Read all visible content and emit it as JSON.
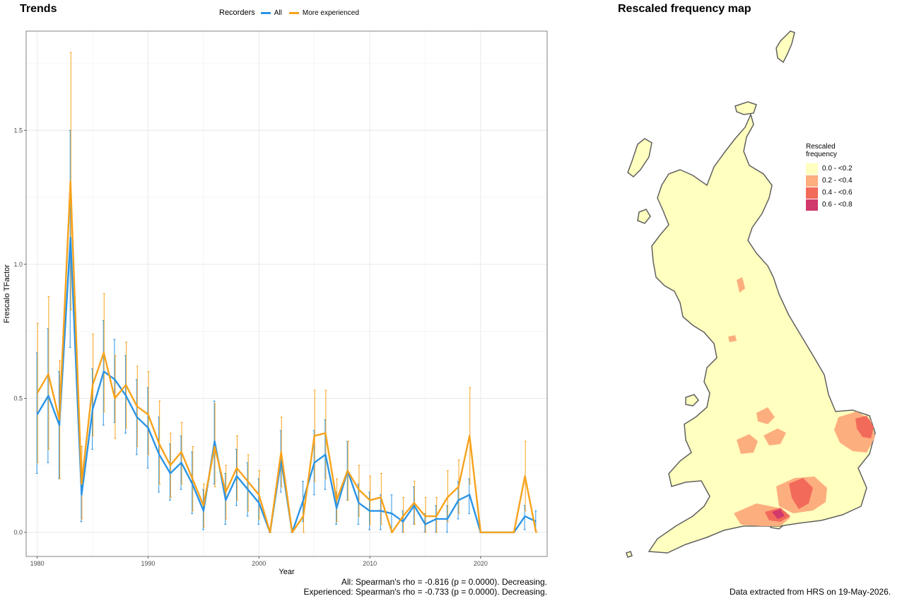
{
  "trends": {
    "title": "Trends",
    "legend": {
      "title": "Recorders",
      "items": [
        {
          "label": "All",
          "color": "#2b94e5"
        },
        {
          "label": "More experienced",
          "color": "#f7a21b"
        }
      ]
    },
    "stats": {
      "all": "All: Spearman's rho = -0.816 (p = 0.0000). Decreasing.",
      "experienced": "Experienced: Spearman's rho = -0.733 (p = 0.0000). Decreasing."
    }
  },
  "chart_data": {
    "type": "line",
    "xlabel": "Year",
    "ylabel": "Frescalo TFactor",
    "xlim": [
      1979,
      2026
    ],
    "ylim": [
      -0.09,
      1.87
    ],
    "xticks": [
      1980,
      1990,
      2000,
      2010,
      2020
    ],
    "yticks": [
      0.0,
      0.5,
      1.0,
      1.5
    ],
    "ytick_labels": [
      "0.0",
      "0.5",
      "1.0",
      "1.5"
    ],
    "grid": true,
    "error_bars": true,
    "legend_position": "top",
    "series": [
      {
        "name": "All",
        "color": "#2b94e5",
        "x": [
          1980,
          1981,
          1982,
          1983,
          1984,
          1985,
          1986,
          1987,
          1988,
          1989,
          1990,
          1991,
          1992,
          1993,
          1994,
          1995,
          1996,
          1997,
          1998,
          1999,
          2000,
          2001,
          2002,
          2003,
          2004,
          2005,
          2006,
          2007,
          2008,
          2009,
          2010,
          2011,
          2012,
          2013,
          2014,
          2015,
          2016,
          2017,
          2018,
          2019,
          2020,
          2021,
          2022,
          2023,
          2024,
          2025
        ],
        "y": [
          0.44,
          0.51,
          0.4,
          1.1,
          0.14,
          0.46,
          0.6,
          0.57,
          0.51,
          0.43,
          0.39,
          0.29,
          0.22,
          0.26,
          0.18,
          0.08,
          0.34,
          0.12,
          0.21,
          0.16,
          0.11,
          0.0,
          0.27,
          0.0,
          0.12,
          0.26,
          0.29,
          0.09,
          0.23,
          0.11,
          0.08,
          0.08,
          0.07,
          0.04,
          0.1,
          0.03,
          0.05,
          0.05,
          0.12,
          0.14,
          0.0,
          0.0,
          0.0,
          0.0,
          0.06,
          0.04
        ],
        "lower": [
          0.22,
          0.26,
          0.2,
          0.69,
          0.04,
          0.31,
          0.4,
          0.41,
          0.37,
          0.29,
          0.24,
          0.15,
          0.12,
          0.16,
          0.07,
          0.01,
          0.18,
          0.03,
          0.1,
          0.06,
          0.03,
          0.0,
          0.15,
          0.0,
          0.04,
          0.14,
          0.16,
          0.03,
          0.12,
          0.03,
          0.01,
          0.01,
          0.0,
          0.0,
          0.03,
          0.0,
          0.0,
          0.0,
          0.05,
          0.07,
          0.0,
          0.0,
          0.0,
          0.0,
          0.01,
          0.01
        ],
        "upper": [
          0.67,
          0.76,
          0.6,
          1.5,
          0.24,
          0.61,
          0.79,
          0.72,
          0.66,
          0.57,
          0.54,
          0.43,
          0.33,
          0.36,
          0.3,
          0.16,
          0.49,
          0.22,
          0.31,
          0.26,
          0.2,
          0.0,
          0.38,
          0.0,
          0.19,
          0.38,
          0.42,
          0.15,
          0.34,
          0.18,
          0.15,
          0.14,
          0.14,
          0.08,
          0.17,
          0.07,
          0.1,
          0.1,
          0.19,
          0.2,
          0.0,
          0.0,
          0.0,
          0.0,
          0.1,
          0.08
        ]
      },
      {
        "name": "More experienced",
        "color": "#f7a21b",
        "x": [
          1980,
          1981,
          1982,
          1983,
          1984,
          1985,
          1986,
          1987,
          1988,
          1989,
          1990,
          1991,
          1992,
          1993,
          1994,
          1995,
          1996,
          1997,
          1998,
          1999,
          2000,
          2001,
          2002,
          2003,
          2004,
          2005,
          2006,
          2007,
          2008,
          2009,
          2010,
          2011,
          2012,
          2013,
          2014,
          2015,
          2016,
          2017,
          2018,
          2019,
          2020,
          2021,
          2022,
          2023,
          2024,
          2025
        ],
        "y": [
          0.52,
          0.59,
          0.42,
          1.31,
          0.18,
          0.55,
          0.67,
          0.5,
          0.55,
          0.47,
          0.44,
          0.33,
          0.25,
          0.3,
          0.2,
          0.1,
          0.32,
          0.15,
          0.24,
          0.19,
          0.14,
          0.0,
          0.3,
          0.0,
          0.06,
          0.36,
          0.37,
          0.12,
          0.23,
          0.16,
          0.12,
          0.13,
          0.0,
          0.06,
          0.11,
          0.06,
          0.06,
          0.13,
          0.17,
          0.36,
          0.0,
          0.0,
          0.0,
          0.0,
          0.21,
          0.0
        ],
        "lower": [
          0.26,
          0.31,
          0.2,
          0.83,
          0.05,
          0.36,
          0.45,
          0.35,
          0.39,
          0.32,
          0.29,
          0.18,
          0.13,
          0.18,
          0.08,
          0.02,
          0.17,
          0.05,
          0.12,
          0.08,
          0.05,
          0.0,
          0.17,
          0.0,
          0.0,
          0.19,
          0.2,
          0.04,
          0.12,
          0.06,
          0.03,
          0.03,
          0.0,
          0.0,
          0.03,
          0.0,
          0.0,
          0.04,
          0.07,
          0.18,
          0.0,
          0.0,
          0.0,
          0.0,
          0.08,
          0.0
        ],
        "upper": [
          0.78,
          0.88,
          0.64,
          1.79,
          0.32,
          0.74,
          0.89,
          0.66,
          0.71,
          0.62,
          0.6,
          0.49,
          0.37,
          0.41,
          0.32,
          0.18,
          0.48,
          0.25,
          0.36,
          0.29,
          0.23,
          0.0,
          0.43,
          0.0,
          0.13,
          0.53,
          0.53,
          0.2,
          0.34,
          0.25,
          0.21,
          0.22,
          0.0,
          0.13,
          0.19,
          0.13,
          0.13,
          0.23,
          0.27,
          0.54,
          0.0,
          0.0,
          0.0,
          0.0,
          0.34,
          0.0
        ]
      }
    ]
  },
  "map": {
    "title": "Rescaled frequency map",
    "legend_title": "Rescaled frequency",
    "classes": [
      {
        "label": "0.0 - <0.2",
        "color": "#ffffbf"
      },
      {
        "label": "0.2 - <0.4",
        "color": "#fdae7e"
      },
      {
        "label": "0.4 - <0.6",
        "color": "#f26a5a"
      },
      {
        "label": "0.6 - <0.8",
        "color": "#d1386b"
      }
    ],
    "footer": "Data extracted from HRS on 19-May-2026."
  }
}
